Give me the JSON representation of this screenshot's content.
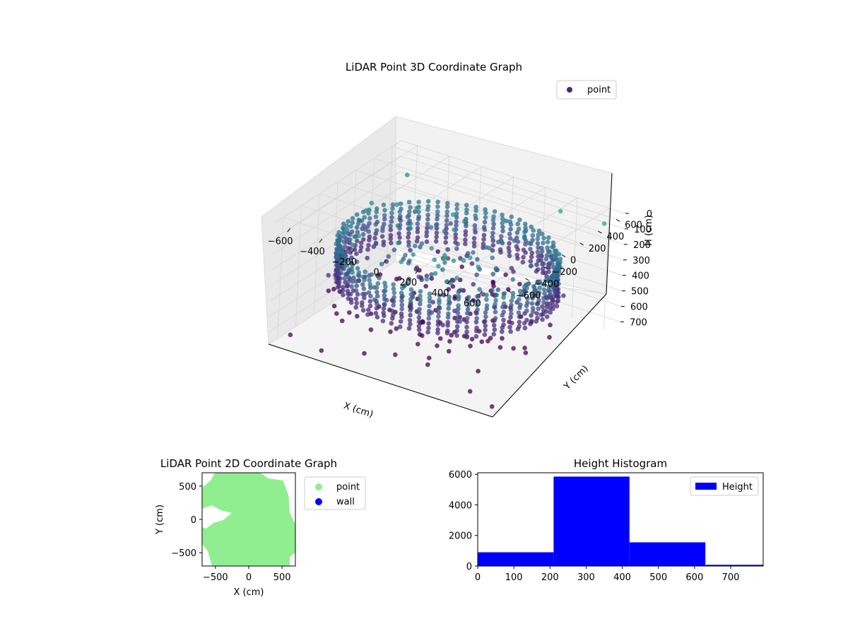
{
  "chart_data": [
    {
      "type": "scatter",
      "projection": "3d",
      "title": "LiDAR Point 3D Coordinate Graph",
      "xlabel": "X (cm)",
      "ylabel": "Y (cm)",
      "zlabel": "H (cm)",
      "xlim": [
        -700,
        700
      ],
      "ylim": [
        -700,
        700
      ],
      "zlim": [
        0,
        780
      ],
      "z_inverted": true,
      "x_ticks": [
        "−600",
        "−400",
        "−200",
        "0",
        "200",
        "400",
        "600"
      ],
      "y_ticks": [
        "−600",
        "−400",
        "−200",
        "0",
        "200",
        "400",
        "600"
      ],
      "z_ticks": [
        "0",
        "100",
        "200",
        "300",
        "400",
        "500",
        "600",
        "700"
      ],
      "x_tick_values": [
        -600,
        -400,
        -200,
        0,
        200,
        400,
        600
      ],
      "y_tick_values": [
        -600,
        -400,
        -200,
        0,
        200,
        400,
        600
      ],
      "z_tick_values": [
        0,
        100,
        200,
        300,
        400,
        500,
        600,
        700
      ],
      "colormap": "viridis",
      "grid": true,
      "legend": {
        "position": "top-right",
        "entries": [
          {
            "label": "point",
            "color": "#482878"
          }
        ]
      },
      "series": [
        {
          "name": "point",
          "description_of_structure": "ring of points of radius about 600 cm spanning heights about 200-450 cm with scattered outliers",
          "ring_radius": 600,
          "ring_height_range": [
            200,
            450
          ],
          "outliers": [
            {
              "x": -650,
              "y": -550,
              "h": 760
            },
            {
              "x": -600,
              "y": 600,
              "h": 150
            },
            {
              "x": 600,
              "y": 650,
              "h": 80
            },
            {
              "x": 650,
              "y": -620,
              "h": 760
            },
            {
              "x": -400,
              "y": -650,
              "h": 740
            },
            {
              "x": 500,
              "y": -600,
              "h": 720
            },
            {
              "x": -700,
              "y": 200,
              "h": 600
            },
            {
              "x": 300,
              "y": 700,
              "h": 120
            }
          ]
        }
      ]
    },
    {
      "type": "scatter",
      "title": "LiDAR Point 2D Coordinate Graph",
      "xlabel": "X (cm)",
      "ylabel": "Y (cm)",
      "xlim": [
        -700,
        700
      ],
      "ylim": [
        -700,
        700
      ],
      "x_ticks": [
        "−500",
        "0",
        "500"
      ],
      "y_ticks": [
        "500",
        "0",
        "−500"
      ],
      "x_tick_values": [
        -500,
        0,
        500
      ],
      "y_tick_values": [
        500,
        0,
        -500
      ],
      "legend": {
        "position": "outside-right",
        "entries": [
          {
            "label": "point",
            "color": "#90ee90"
          },
          {
            "label": "wall",
            "color": "#0000ff"
          }
        ]
      },
      "series": [
        {
          "name": "point",
          "color": "#90ee90",
          "fill": "nearly the entire area is covered by points"
        },
        {
          "name": "wall",
          "color": "#0000ff",
          "values": []
        }
      ]
    },
    {
      "type": "bar",
      "subtype": "histogram",
      "title": "Height Histogram",
      "xlabel": "",
      "ylabel": "",
      "xlim": [
        0,
        790
      ],
      "ylim": [
        0,
        6100
      ],
      "x_ticks": [
        "0",
        "100",
        "200",
        "300",
        "400",
        "500",
        "600",
        "700"
      ],
      "x_tick_values": [
        0,
        100,
        200,
        300,
        400,
        500,
        600,
        700
      ],
      "y_ticks": [
        "0",
        "2000",
        "4000",
        "6000"
      ],
      "y_tick_values": [
        0,
        2000,
        4000,
        6000
      ],
      "legend": {
        "position": "top-right",
        "entries": [
          {
            "label": "Height",
            "color": "#0000ff"
          }
        ]
      },
      "series": [
        {
          "name": "Height",
          "color": "#0000ff",
          "bins": [
            {
              "from": 0,
              "to": 210,
              "count": 900
            },
            {
              "from": 210,
              "to": 420,
              "count": 5850
            },
            {
              "from": 420,
              "to": 630,
              "count": 1550
            },
            {
              "from": 630,
              "to": 790,
              "count": 80
            }
          ]
        }
      ]
    }
  ]
}
